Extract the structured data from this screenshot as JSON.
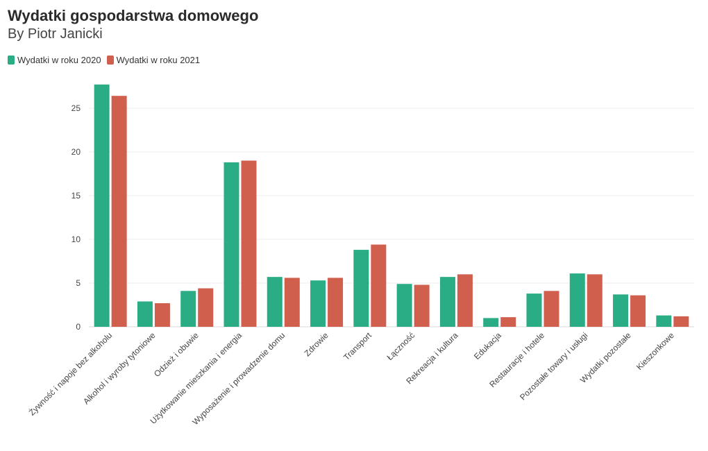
{
  "chart_data": {
    "type": "bar",
    "title": "Wydatki gospodarstwa domowego",
    "subtitle": "By Piotr Janicki",
    "xlabel": "",
    "ylabel": "",
    "ylim": [
      0,
      28
    ],
    "yticks": [
      0,
      5,
      10,
      15,
      20,
      25
    ],
    "grid": true,
    "legend_position": "top-left",
    "categories": [
      "Żywność i napoje bez alkoholu",
      "Alkohol i wyroby tytoniowe",
      "Odzież i obuwie",
      "Użytkowanie mieszkania i energia",
      "Wyposażenie i prowadzenie domu",
      "Zdrowie",
      "Transport",
      "Łączność",
      "Rekreacja i kultura",
      "Edukacja",
      "Restauracje i hotele",
      "Pozostałe towary i usługi",
      "Wydatki pozostałe",
      "Kieszonkowe"
    ],
    "series": [
      {
        "name": "Wydatki w roku 2020",
        "color": "#2aad84",
        "values": [
          27.7,
          2.9,
          4.1,
          18.8,
          5.7,
          5.3,
          8.8,
          4.9,
          5.7,
          1.0,
          3.8,
          6.1,
          3.7,
          1.3
        ]
      },
      {
        "name": "Wydatki w roku 2021",
        "color": "#d05f4e",
        "values": [
          26.4,
          2.7,
          4.4,
          19.0,
          5.6,
          5.6,
          9.4,
          4.8,
          6.0,
          1.1,
          4.1,
          6.0,
          3.6,
          1.2
        ]
      }
    ]
  }
}
